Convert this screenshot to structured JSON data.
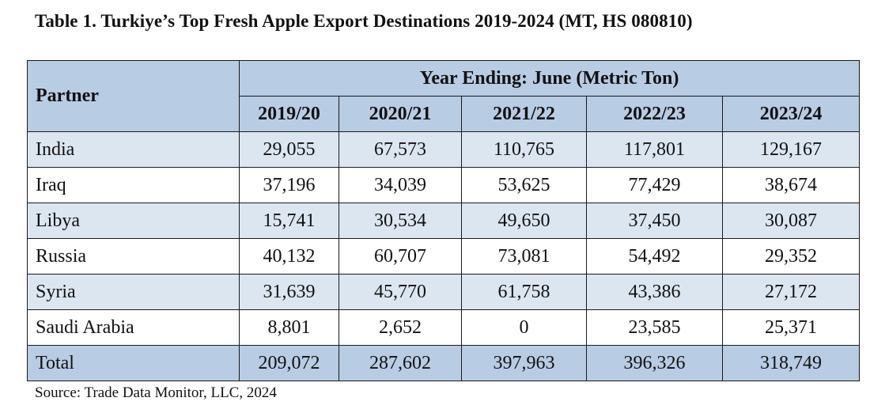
{
  "title": "Table 1. Turkiye’s Top Fresh Apple Export Destinations 2019-2024 (MT, HS 080810)",
  "table": {
    "partner_header": "Partner",
    "group_header": "Year Ending: June (Metric Ton)",
    "years": [
      "2019/20",
      "2020/21",
      "2021/22",
      "2022/23",
      "2023/24"
    ],
    "rows": [
      {
        "partner": "India",
        "values": [
          "29,055",
          "67,573",
          "110,765",
          "117,801",
          "129,167"
        ]
      },
      {
        "partner": "Iraq",
        "values": [
          "37,196",
          "34,039",
          "53,625",
          "77,429",
          "38,674"
        ]
      },
      {
        "partner": "Libya",
        "values": [
          "15,741",
          "30,534",
          "49,650",
          "37,450",
          "30,087"
        ]
      },
      {
        "partner": "Russia",
        "values": [
          "40,132",
          "60,707",
          "73,081",
          "54,492",
          "29,352"
        ]
      },
      {
        "partner": "Syria",
        "values": [
          "31,639",
          "45,770",
          "61,758",
          "43,386",
          "27,172"
        ]
      },
      {
        "partner": "Saudi Arabia",
        "values": [
          "8,801",
          "2,652",
          "0",
          "23,585",
          "25,371"
        ]
      }
    ],
    "total": {
      "partner": "Total",
      "values": [
        "209,072",
        "287,602",
        "397,963",
        "396,326",
        "318,749"
      ]
    }
  },
  "source": "Source: Trade Data Monitor, LLC, 2024"
}
